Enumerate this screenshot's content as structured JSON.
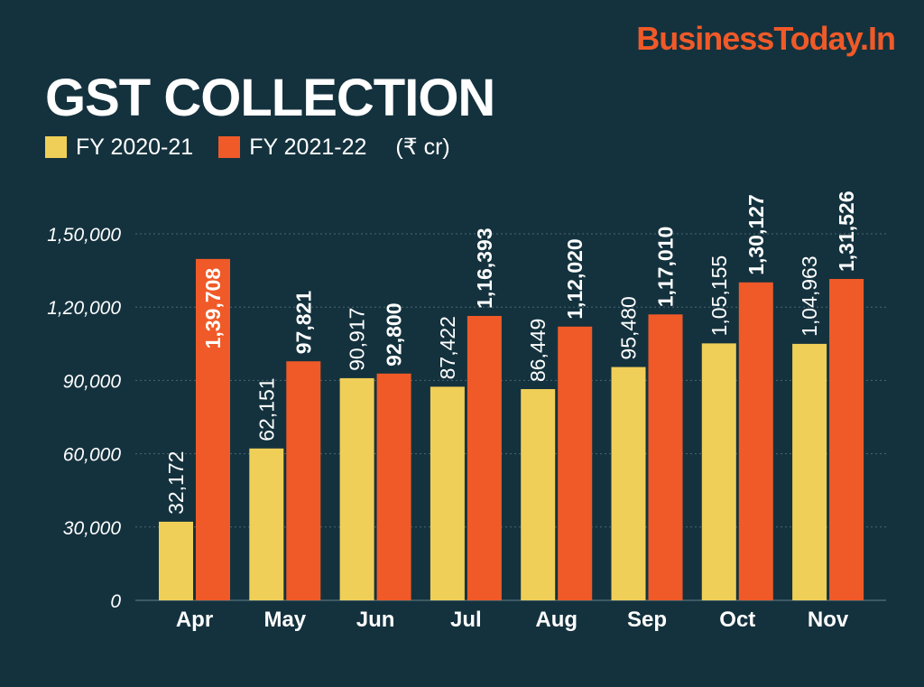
{
  "brand": "BusinessToday.In",
  "colors": {
    "background": "#14323e",
    "fy2021": "#f0cf58",
    "fy2122": "#f05a28",
    "grid": "#4a6670"
  },
  "chart_data": {
    "type": "bar",
    "title": "GST COLLECTION",
    "unit": "(₹ cr)",
    "categories": [
      "Apr",
      "May",
      "Jun",
      "Jul",
      "Aug",
      "Sep",
      "Oct",
      "Nov"
    ],
    "series": [
      {
        "name": "FY 2020-21",
        "values": [
          32172,
          62151,
          90917,
          87422,
          86449,
          95480,
          105155,
          104963
        ],
        "labels": [
          "32,172",
          "62,151",
          "90,917",
          "87,422",
          "86,449",
          "95,480",
          "1,05,155",
          "1,04,963"
        ]
      },
      {
        "name": "FY 2021-22",
        "values": [
          139708,
          97821,
          92800,
          116393,
          112020,
          117010,
          130127,
          131526
        ],
        "labels": [
          "1,39,708",
          "97,821",
          "92,800",
          "1,16,393",
          "1,12,020",
          "1,17,010",
          "1,30,127",
          "1,31,526"
        ]
      }
    ],
    "yticks": [
      0,
      30000,
      60000,
      90000,
      120000,
      150000
    ],
    "ytick_labels": [
      "0",
      "30,000",
      "60,000",
      "90,000",
      "1,20,000",
      "1,50,000"
    ],
    "ylim": [
      0,
      150000
    ],
    "grid": true,
    "legend": "top-left"
  }
}
